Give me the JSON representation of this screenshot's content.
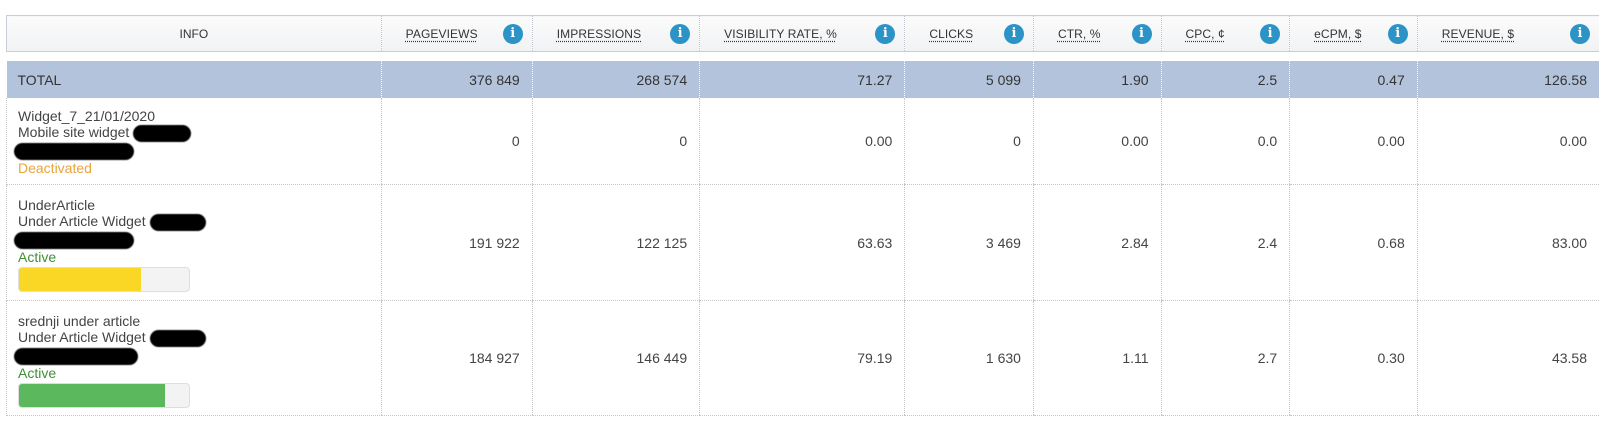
{
  "columns": {
    "info": "INFO",
    "metrics": [
      {
        "label": "PAGEVIEWS"
      },
      {
        "label": "IMPRESSIONS"
      },
      {
        "label": "VISIBILITY RATE, %"
      },
      {
        "label": "CLICKS"
      },
      {
        "label": "CTR, %"
      },
      {
        "label": "CPC, ¢"
      },
      {
        "label": "eCPM, $"
      },
      {
        "label": "REVENUE, $"
      }
    ],
    "info_icon_glyph": "i",
    "info_icon_color": "#2b93c6"
  },
  "total": {
    "label": "TOTAL",
    "values": [
      "376 849",
      "268 574",
      "71.27",
      "5 099",
      "1.90",
      "2.5",
      "0.47",
      "126.58"
    ]
  },
  "rows": [
    {
      "name": "Widget_7_21/01/2020",
      "type": "Mobile site widget",
      "status": "Deactivated",
      "status_color": "#e9a43b",
      "values": [
        "0",
        "0",
        "0.00",
        "0",
        "0.00",
        "0.0",
        "0.00",
        "0.00"
      ]
    },
    {
      "name": "UnderArticle",
      "type": "Under Article Widget",
      "status": "Active",
      "status_color": "#3f8f35",
      "progress": 0.72,
      "progress_color": "#fbd725",
      "values": [
        "191 922",
        "122 125",
        "63.63",
        "3 469",
        "2.84",
        "2.4",
        "0.68",
        "83.00"
      ]
    },
    {
      "name": "srednji under article",
      "type": "Under Article Widget",
      "status": "Active",
      "status_color": "#3f8f35",
      "progress": 0.86,
      "progress_color": "#5cb85c",
      "values": [
        "184 927",
        "146 449",
        "79.19",
        "1 630",
        "1.11",
        "2.7",
        "0.30",
        "43.58"
      ]
    }
  ],
  "colors": {
    "total_row_bg": "#b4c3dc",
    "redaction": "#000000"
  }
}
